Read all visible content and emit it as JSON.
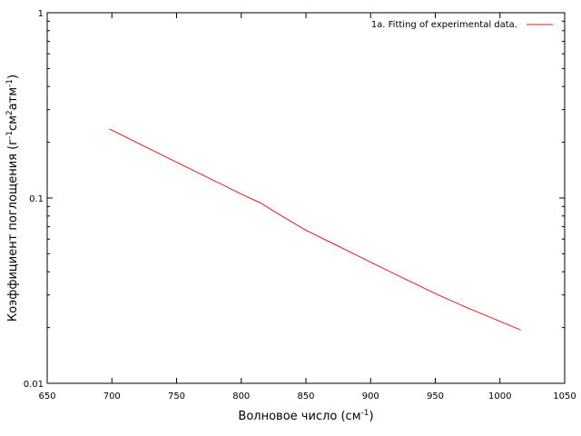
{
  "chart_data": {
    "type": "line",
    "xlabel": "Волновое число (см",
    "xlabel_sup": "-1",
    "xlabel_tail": ")",
    "ylabel_parts": [
      {
        "text": "Коэффициент поглощения (г",
        "sup": false
      },
      {
        "text": "-1",
        "sup": true
      },
      {
        "text": "см",
        "sup": false
      },
      {
        "text": "2",
        "sup": true
      },
      {
        "text": "атм",
        "sup": false
      },
      {
        "text": "-1",
        "sup": true
      },
      {
        "text": ")",
        "sup": false
      }
    ],
    "xlim": [
      650,
      1050
    ],
    "ylim": [
      0.01,
      1
    ],
    "yscale": "log",
    "xticks": [
      650,
      700,
      750,
      800,
      850,
      900,
      950,
      1000,
      1050
    ],
    "xtick_labels": [
      "650",
      "700",
      "750",
      "800",
      "850",
      "900",
      "950",
      "1000",
      "1050"
    ],
    "yticks": [
      0.01,
      0.1,
      1
    ],
    "ytick_labels": [
      "0.01",
      "0.1",
      "1"
    ],
    "grid": false,
    "legend_position": "top-right",
    "series": [
      {
        "name": "1a. Fitting of experimental data.",
        "color": "#e41a1c",
        "x": [
          698,
          725,
          750,
          775,
          800,
          815,
          830,
          850,
          875,
          900,
          925,
          950,
          975,
          1000,
          1016
        ],
        "y": [
          0.236,
          0.19,
          0.156,
          0.128,
          0.105,
          0.094,
          0.081,
          0.067,
          0.055,
          0.045,
          0.037,
          0.0305,
          0.0255,
          0.0216,
          0.0194
        ]
      }
    ]
  }
}
